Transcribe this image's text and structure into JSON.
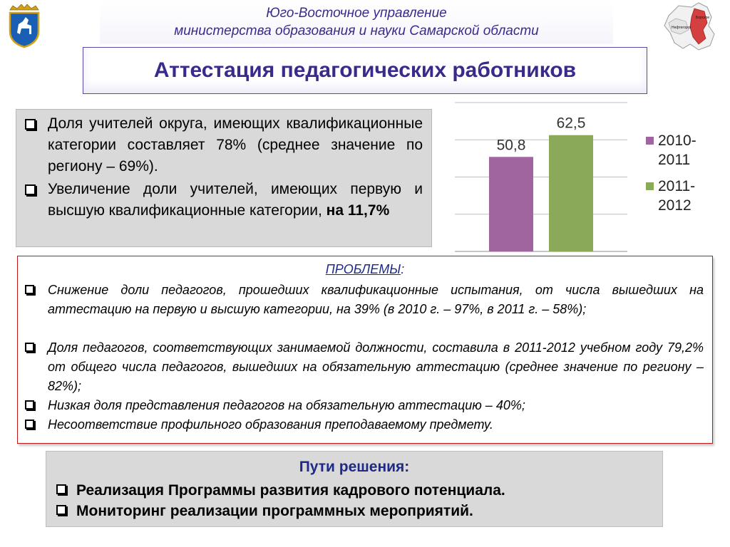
{
  "header": {
    "line1": "Юго-Восточное управление",
    "line2": "министерства образования и науки Самарской области"
  },
  "title": "Аттестация педагогических работников",
  "facts": [
    "Доля учителей округа, имеющих квалификационные категории составляет 78% (среднее значение по региону – 69%).",
    {
      "text": "Увеличение доли учителей, имеющих первую и высшую квалификационные категории, ",
      "bold": "на 11,7%"
    }
  ],
  "problems": {
    "heading": "ПРОБЛЕМЫ",
    "colon": ":",
    "items": [
      "Снижение доли педагогов, прошедших квалификационные испытания, от числа вышедших на аттестацию на первую и высшую категории, на 39% (в 2010 г. – 97%, в 2011 г. – 58%);",
      "Доля педагогов, соответствующих занимаемой должности, составила в 2011-2012 учебном году 79,2% от общего числа педагогов, вышедших на обязательную аттестацию (среднее значение по региону – 82%);",
      "Низкая доля представления педагогов на обязательную аттестацию – 40%;",
      "Несоответствие  профильного образования  преподаваемому предмету."
    ]
  },
  "solutions": {
    "heading": "Пути решения:",
    "items": [
      "Реализация Программы  развития кадрового потенциала.",
      "Мониторинг реализации программных мероприятий."
    ]
  },
  "map_labels": [
    "Борское",
    "Нефтегорск"
  ],
  "chart_data": {
    "type": "bar",
    "categories": [
      ""
    ],
    "series": [
      {
        "name": "2010-2011",
        "values": [
          50.8
        ],
        "label": "50,8",
        "color": "#a0649e"
      },
      {
        "name": "2011-2012",
        "values": [
          62.5
        ],
        "label": "62,5",
        "color": "#8aaa5a"
      }
    ],
    "ylim": [
      0,
      80
    ],
    "grid": true,
    "legend": "right"
  }
}
